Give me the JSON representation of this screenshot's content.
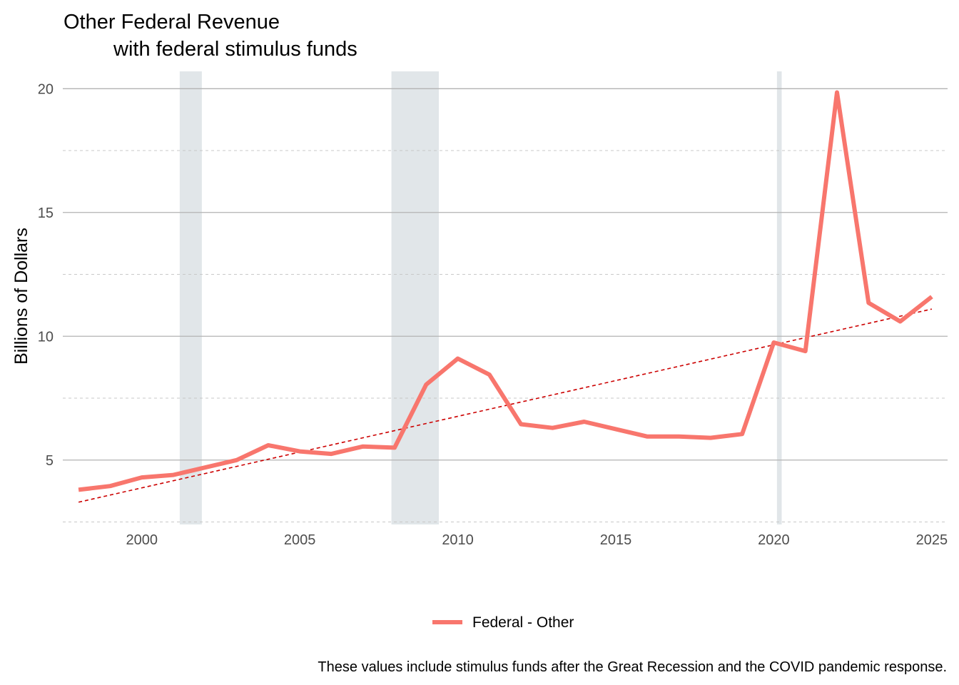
{
  "chart_data": {
    "type": "line",
    "title_line1": "Other Federal Revenue",
    "title_line2": "with federal stimulus funds",
    "xlabel": "",
    "ylabel": "Billions of Dollars",
    "caption": "These values include stimulus funds after the Great Recession and the COVID pandemic response.",
    "xlim": [
      1997.5,
      2025.5
    ],
    "ylim": [
      2.4,
      20.7
    ],
    "x_ticks": [
      "2000",
      "2005",
      "2010",
      "2015",
      "2020",
      "2025"
    ],
    "y_ticks": [
      "5",
      "10",
      "15",
      "20"
    ],
    "grid": true,
    "legend_position": "bottom",
    "recessions": [
      {
        "start": 2001.2,
        "end": 2001.9
      },
      {
        "start": 2007.9,
        "end": 2009.4
      },
      {
        "start": 2020.1,
        "end": 2020.25
      }
    ],
    "series": [
      {
        "name": "Federal - Other",
        "color": "#F8766D",
        "x": [
          1998,
          1999,
          2000,
          2001,
          2002,
          2003,
          2004,
          2005,
          2006,
          2007,
          2008,
          2009,
          2010,
          2011,
          2012,
          2013,
          2014,
          2015,
          2016,
          2017,
          2018,
          2019,
          2020,
          2021,
          2022,
          2023,
          2024,
          2025
        ],
        "y": [
          3.8,
          3.95,
          4.3,
          4.4,
          4.7,
          5.0,
          5.6,
          5.35,
          5.25,
          5.55,
          5.5,
          8.05,
          9.1,
          8.45,
          6.45,
          6.3,
          6.55,
          6.25,
          5.95,
          5.95,
          5.9,
          6.05,
          9.75,
          9.4,
          19.85,
          11.35,
          10.6,
          11.6
        ]
      }
    ],
    "trend": {
      "color": "#CC0000",
      "style": "dashed",
      "x": [
        1998,
        2025
      ],
      "y": [
        3.3,
        11.1
      ]
    }
  }
}
